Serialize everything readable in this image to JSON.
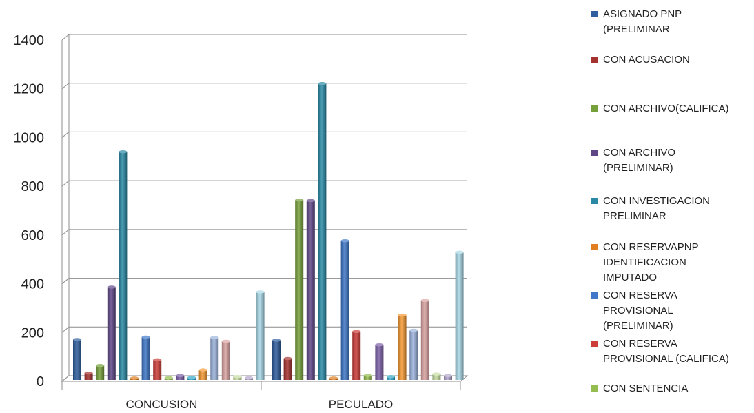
{
  "chart_data": {
    "type": "bar",
    "categories": [
      "CONCUSION",
      "PECULADO"
    ],
    "ylim": [
      0,
      1400
    ],
    "yticks": [
      "0",
      "200",
      "400",
      "600",
      "800",
      "1000",
      "1200",
      "1400"
    ],
    "grid": true,
    "legend_position": "right",
    "series": [
      {
        "name": "ASIGNADO PNP (PRELIMINAR",
        "color": "#2f5f9e",
        "values": [
          160,
          157
        ]
      },
      {
        "name": "CON ACUSACION",
        "color": "#a6322f",
        "values": [
          22,
          82
        ]
      },
      {
        "name": "CON ARCHIVO(CALIFICA)",
        "color": "#76a03a",
        "values": [
          53,
          732
        ]
      },
      {
        "name": "CON ARCHIVO (PRELIMINAR)",
        "color": "#5f4787",
        "values": [
          375,
          730
        ]
      },
      {
        "name": "CON INVESTIGACION PRELIMINAR",
        "color": "#2a8aa6",
        "values": [
          930,
          1210
        ]
      },
      {
        "name": "CON RESERVAPNP IDENTIFICACION IMPUTADO",
        "color": "#e07d1e",
        "values": [
          2,
          2
        ]
      },
      {
        "name": "CON RESERVA PROVISIONAL (PRELIMINAR)",
        "color": "#3f78c8",
        "values": [
          170,
          565
        ]
      },
      {
        "name": "CON RESERVA PROVISIONAL (CALIFICA)",
        "color": "#cc3c38",
        "values": [
          77,
          193
        ]
      },
      {
        "name": "CON SENTENCIA",
        "color": "#94bc4e",
        "values": [
          3,
          13
        ]
      },
      {
        "name": "",
        "color": "#7b60a6",
        "values": [
          12,
          138
        ]
      },
      {
        "name": "",
        "color": "#32a8c8",
        "values": [
          4,
          8
        ]
      },
      {
        "name": "",
        "color": "#f59a33",
        "values": [
          35,
          260
        ]
      },
      {
        "name": "",
        "color": "#9db4dd",
        "values": [
          168,
          198
        ]
      },
      {
        "name": "",
        "color": "#dba4a2",
        "values": [
          153,
          320
        ]
      },
      {
        "name": "",
        "color": "#c6dea2",
        "values": [
          8,
          18
        ]
      },
      {
        "name": "",
        "color": "#b3a6cc",
        "values": [
          3,
          12
        ]
      },
      {
        "name": "",
        "color": "#a8d8e6",
        "values": [
          355,
          518
        ]
      }
    ]
  },
  "legend": [
    {
      "label": "ASIGNADO PNP\n(PRELIMINAR",
      "color": "#2f5f9e"
    },
    {
      "label": "CON ACUSACION",
      "color": "#a6322f"
    },
    {
      "label": "CON ARCHIVO(CALIFICA)",
      "color": "#76a03a"
    },
    {
      "label": "CON ARCHIVO\n(PRELIMINAR)",
      "color": "#5f4787"
    },
    {
      "label": "CON INVESTIGACION\nPRELIMINAR",
      "color": "#2a8aa6"
    },
    {
      "label": "CON RESERVAPNP\nIDENTIFICACION\nIMPUTADO",
      "color": "#e07d1e"
    },
    {
      "label": "CON RESERVA\nPROVISIONAL\n(PRELIMINAR)",
      "color": "#3f78c8"
    },
    {
      "label": "CON RESERVA\nPROVISIONAL (CALIFICA)",
      "color": "#cc3c38"
    },
    {
      "label": "CON SENTENCIA",
      "color": "#94bc4e"
    }
  ]
}
